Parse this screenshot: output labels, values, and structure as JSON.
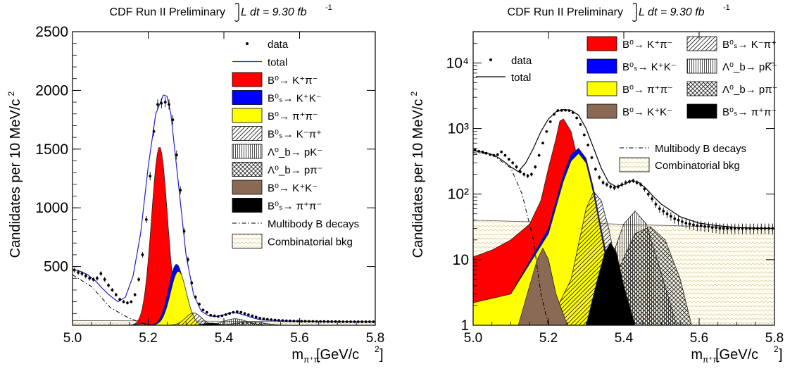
{
  "chart_data": [
    {
      "type": "area",
      "title": "CDF Run II Preliminary",
      "lumi_text": "L dt = 9.30 fb",
      "lumi_exp": "-1",
      "xlabel": "[GeV/c",
      "xlabel_sub": "π⁺π⁻",
      "ylabel": "Candidates per 10 MeV/c",
      "xlim": [
        5.0,
        5.8
      ],
      "ylim": [
        0,
        2500
      ],
      "log_y": false,
      "x_ticks": [
        "5.0",
        "5.2",
        "5.4",
        "5.6",
        "5.8"
      ],
      "x_tick_values": [
        5.0,
        5.2,
        5.4,
        5.6,
        5.8
      ],
      "y_ticks": [
        "500",
        "1000",
        "1500",
        "2000",
        "2500"
      ],
      "y_tick_values": [
        500,
        1000,
        1500,
        2000,
        2500
      ],
      "legend_position": "top-right",
      "legend": [
        {
          "key": "data",
          "label": "data",
          "symbol": "marker"
        },
        {
          "key": "total",
          "label": "total",
          "symbol": "line",
          "color": "#1f1fd0"
        },
        {
          "key": "b0kpi",
          "label": "B⁰→ K⁺π⁻",
          "symbol": "fill",
          "color": "#ff0000"
        },
        {
          "key": "bskk",
          "label": "B⁰ₛ→ K⁺K⁻",
          "symbol": "fill",
          "color": "#0000ff"
        },
        {
          "key": "b0pipi",
          "label": "B⁰→ π⁺π⁻",
          "symbol": "fill",
          "color": "#ffff00"
        },
        {
          "key": "bskpi",
          "label": "B⁰ₛ→ K⁻π⁺",
          "symbol": "diag"
        },
        {
          "key": "lbpk",
          "label": "Λ⁰_b→ pK⁻",
          "symbol": "vert"
        },
        {
          "key": "lbppi",
          "label": "Λ⁰_b→ pπ⁻",
          "symbol": "cross"
        },
        {
          "key": "b0kk",
          "label": "B⁰→ K⁺K⁻",
          "symbol": "fill",
          "color": "#8b6a55"
        },
        {
          "key": "bspipi",
          "label": "B⁰ₛ→ π⁺π⁻",
          "symbol": "fill",
          "color": "#000000"
        },
        {
          "key": "multibody",
          "label": "Multibody B decays",
          "symbol": "dashdot"
        },
        {
          "key": "comb",
          "label": "Combinatorial bkg",
          "symbol": "wave"
        }
      ],
      "series": [
        {
          "name": "B⁰→ K⁺π⁻",
          "type": "gauss",
          "mean": 5.23,
          "sigma": 0.021,
          "peak": 1520
        },
        {
          "name": "B⁰ₛ→ K⁺K⁻",
          "type": "gauss",
          "mean": 5.275,
          "sigma": 0.021,
          "peak": 520
        },
        {
          "name": "B⁰→ π⁺π⁻",
          "type": "gauss",
          "mean": 5.28,
          "sigma": 0.021,
          "peak": 460
        },
        {
          "name": "B⁰ₛ→ K⁻π⁺",
          "type": "gauss",
          "mean": 5.32,
          "sigma": 0.021,
          "peak": 105
        },
        {
          "name": "Λ⁰_b→ pK⁻",
          "type": "gauss",
          "mean": 5.43,
          "sigma": 0.03,
          "peak": 55
        },
        {
          "name": "Λ⁰_b→ pπ⁻",
          "type": "gauss",
          "mean": 5.47,
          "sigma": 0.035,
          "peak": 30
        },
        {
          "name": "B⁰→ K⁺K⁻",
          "type": "gauss",
          "mean": 5.185,
          "sigma": 0.014,
          "peak": 15
        },
        {
          "name": "B⁰ₛ→ π⁺π⁻",
          "type": "gauss",
          "mean": 5.365,
          "sigma": 0.02,
          "peak": 18
        },
        {
          "name": "Multibody B decays",
          "type": "multibody",
          "x": [
            5.0,
            5.05,
            5.1,
            5.15,
            5.2
          ],
          "values": [
            430,
            330,
            150,
            60,
            0
          ]
        },
        {
          "name": "Combinatorial bkg",
          "type": "flat",
          "values": [
            40,
            28
          ]
        }
      ],
      "total": {
        "x": [
          5.0,
          5.02,
          5.04,
          5.06,
          5.08,
          5.1,
          5.12,
          5.14,
          5.16,
          5.18,
          5.2,
          5.22,
          5.24,
          5.25,
          5.26,
          5.28,
          5.3,
          5.32,
          5.34,
          5.36,
          5.38,
          5.4,
          5.42,
          5.44,
          5.46,
          5.48,
          5.5,
          5.55,
          5.6,
          5.65,
          5.7,
          5.75,
          5.8
        ],
        "values": [
          480,
          460,
          430,
          380,
          310,
          250,
          200,
          240,
          420,
          780,
          1350,
          1800,
          1960,
          1950,
          1800,
          1200,
          600,
          260,
          120,
          80,
          75,
          90,
          110,
          100,
          80,
          60,
          45,
          38,
          35,
          33,
          32,
          31,
          30
        ]
      },
      "data_points": {
        "x": [
          5.005,
          5.015,
          5.025,
          5.035,
          5.045,
          5.055,
          5.065,
          5.075,
          5.085,
          5.095,
          5.105,
          5.115,
          5.125,
          5.135,
          5.145,
          5.155,
          5.165,
          5.175,
          5.185,
          5.195,
          5.205,
          5.215,
          5.225,
          5.235,
          5.245,
          5.255,
          5.265,
          5.275,
          5.285,
          5.295,
          5.305,
          5.315,
          5.325,
          5.335,
          5.345,
          5.355,
          5.365,
          5.375,
          5.385,
          5.395,
          5.405,
          5.415,
          5.425,
          5.435,
          5.445,
          5.455,
          5.465,
          5.475,
          5.485,
          5.495,
          5.505,
          5.515,
          5.525,
          5.535,
          5.545,
          5.555,
          5.565,
          5.575,
          5.585,
          5.595,
          5.605,
          5.615,
          5.625,
          5.635,
          5.645,
          5.655,
          5.665,
          5.675,
          5.685,
          5.695,
          5.705,
          5.715,
          5.725,
          5.735,
          5.745,
          5.755,
          5.765,
          5.775,
          5.785,
          5.795
        ],
        "values": [
          470,
          450,
          440,
          420,
          400,
          390,
          400,
          440,
          390,
          340,
          300,
          260,
          220,
          200,
          190,
          200,
          260,
          390,
          600,
          900,
          1270,
          1650,
          1880,
          1890,
          1900,
          1880,
          1750,
          1450,
          1150,
          800,
          560,
          360,
          240,
          180,
          130,
          110,
          85,
          80,
          75,
          80,
          90,
          100,
          110,
          115,
          110,
          100,
          90,
          80,
          70,
          60,
          55,
          50,
          48,
          45,
          42,
          40,
          38,
          37,
          36,
          35,
          34,
          34,
          33,
          33,
          32,
          32,
          32,
          31,
          31,
          31,
          31,
          30,
          30,
          30,
          30,
          30,
          30,
          30,
          30,
          30
        ]
      }
    },
    {
      "type": "area",
      "title": "CDF Run II Preliminary",
      "lumi_text": "L dt = 9.30 fb",
      "lumi_exp": "-1",
      "xlabel": "[GeV/c",
      "xlabel_sub": "π⁺π⁻",
      "ylabel": "Candidates per 10 MeV/c",
      "xlim": [
        5.0,
        5.8
      ],
      "ylim": [
        1,
        30000
      ],
      "log_y": true,
      "x_ticks": [
        "5.0",
        "5.2",
        "5.4",
        "5.6",
        "5.8"
      ],
      "x_tick_values": [
        5.0,
        5.2,
        5.4,
        5.6,
        5.8
      ],
      "y_ticks": [
        "1",
        "10",
        "10²",
        "10³",
        "10⁴"
      ],
      "y_tick_values": [
        1,
        10,
        100,
        1000,
        10000
      ],
      "legend_position": "top-right",
      "legend": [
        {
          "key": "data",
          "label": "data",
          "symbol": "marker"
        },
        {
          "key": "total",
          "label": "total",
          "symbol": "line",
          "color": "#000000"
        },
        {
          "key": "b0kpi",
          "label": "B⁰→ K⁺π⁻",
          "symbol": "fill",
          "color": "#ff0000"
        },
        {
          "key": "bskk",
          "label": "B⁰ₛ→ K⁺K⁻",
          "symbol": "fill",
          "color": "#0000ff"
        },
        {
          "key": "b0pipi",
          "label": "B⁰→ π⁺π⁻",
          "symbol": "fill",
          "color": "#ffff00"
        },
        {
          "key": "b0kk",
          "label": "B⁰→ K⁺K⁻",
          "symbol": "fill",
          "color": "#8b6a55"
        },
        {
          "key": "bskpi",
          "label": "B⁰ₛ→ K⁻π⁺",
          "symbol": "diag"
        },
        {
          "key": "lbpk",
          "label": "Λ⁰_b→ pK⁻",
          "symbol": "vert"
        },
        {
          "key": "lbppi",
          "label": "Λ⁰_b→ pπ⁻",
          "symbol": "cross"
        },
        {
          "key": "bspipi",
          "label": "B⁰ₛ→ π⁺π⁻",
          "symbol": "fill",
          "color": "#000000"
        },
        {
          "key": "multibody",
          "label": "Multibody B decays",
          "symbol": "dashdot"
        },
        {
          "key": "comb",
          "label": "Combinatorial bkg",
          "symbol": "wave"
        }
      ],
      "series": [
        {
          "name": "B⁰→ K⁺π⁻",
          "type": "log_curve",
          "x": [
            5.0,
            5.05,
            5.1,
            5.15,
            5.18,
            5.2,
            5.22,
            5.23,
            5.24,
            5.26,
            5.28,
            5.3,
            5.32,
            5.34,
            5.36,
            5.38
          ],
          "values": [
            11,
            14,
            20,
            35,
            80,
            250,
            700,
            1300,
            1400,
            900,
            300,
            80,
            15,
            4,
            1.5,
            1
          ]
        },
        {
          "name": "B⁰ₛ→ K⁺K⁻",
          "type": "log_curve",
          "x": [
            5.0,
            5.1,
            5.2,
            5.24,
            5.26,
            5.28,
            5.3,
            5.32,
            5.34,
            5.36,
            5.38,
            5.4
          ],
          "values": [
            2,
            3,
            30,
            200,
            400,
            500,
            350,
            120,
            30,
            8,
            2,
            1
          ]
        },
        {
          "name": "B⁰→ π⁺π⁻",
          "type": "log_curve",
          "x": [
            5.0,
            5.1,
            5.2,
            5.24,
            5.26,
            5.28,
            5.3,
            5.32,
            5.34,
            5.36,
            5.38,
            5.4
          ],
          "values": [
            2.2,
            3,
            25,
            160,
            320,
            420,
            300,
            100,
            25,
            6,
            1.8,
            1
          ]
        },
        {
          "name": "B⁰ₛ→ K⁻π⁺",
          "type": "log_curve",
          "x": [
            5.2,
            5.26,
            5.3,
            5.32,
            5.34,
            5.36,
            5.38,
            5.4,
            5.42
          ],
          "values": [
            1,
            5,
            60,
            110,
            80,
            30,
            8,
            2,
            1
          ]
        },
        {
          "name": "Λ⁰_b→ pK⁻",
          "type": "log_curve",
          "x": [
            5.3,
            5.36,
            5.4,
            5.43,
            5.46,
            5.5,
            5.54
          ],
          "values": [
            1,
            8,
            35,
            55,
            35,
            6,
            1
          ]
        },
        {
          "name": "Λ⁰_b→ pπ⁻",
          "type": "log_curve",
          "x": [
            5.32,
            5.38,
            5.43,
            5.47,
            5.51,
            5.55,
            5.58
          ],
          "values": [
            1,
            6,
            25,
            32,
            20,
            5,
            1
          ]
        },
        {
          "name": "B⁰→ K⁺K⁻",
          "type": "log_curve",
          "x": [
            5.12,
            5.15,
            5.17,
            5.185,
            5.2,
            5.22,
            5.25
          ],
          "values": [
            1,
            4,
            10,
            15,
            10,
            3,
            1
          ]
        },
        {
          "name": "B⁰ₛ→ π⁺π⁻",
          "type": "log_curve",
          "x": [
            5.3,
            5.33,
            5.35,
            5.365,
            5.38,
            5.4,
            5.43
          ],
          "values": [
            1,
            5,
            13,
            18,
            13,
            4,
            1
          ]
        },
        {
          "name": "Multibody B decays",
          "type": "log_line",
          "x": [
            5.0,
            5.05,
            5.1,
            5.13,
            5.16,
            5.18,
            5.2
          ],
          "values": [
            430,
            400,
            250,
            100,
            20,
            3,
            1
          ]
        },
        {
          "name": "Combinatorial bkg",
          "type": "log_flat",
          "values": [
            40,
            30
          ]
        }
      ],
      "total": {
        "x": [
          5.0,
          5.02,
          5.04,
          5.06,
          5.08,
          5.1,
          5.12,
          5.14,
          5.16,
          5.18,
          5.2,
          5.22,
          5.24,
          5.26,
          5.28,
          5.3,
          5.32,
          5.34,
          5.36,
          5.38,
          5.4,
          5.42,
          5.44,
          5.46,
          5.48,
          5.5,
          5.55,
          5.6,
          5.65,
          5.7,
          5.75,
          5.8
        ],
        "values": [
          460,
          440,
          420,
          380,
          320,
          260,
          220,
          300,
          500,
          900,
          1400,
          1800,
          1950,
          1900,
          1600,
          1000,
          500,
          250,
          150,
          130,
          140,
          160,
          150,
          120,
          90,
          70,
          45,
          36,
          33,
          31,
          30,
          30
        ]
      },
      "data_points": {
        "x": [
          5.005,
          5.015,
          5.025,
          5.035,
          5.045,
          5.055,
          5.065,
          5.075,
          5.085,
          5.095,
          5.105,
          5.115,
          5.125,
          5.135,
          5.145,
          5.155,
          5.165,
          5.175,
          5.185,
          5.195,
          5.205,
          5.215,
          5.225,
          5.235,
          5.245,
          5.255,
          5.265,
          5.275,
          5.285,
          5.295,
          5.305,
          5.315,
          5.325,
          5.335,
          5.345,
          5.355,
          5.365,
          5.375,
          5.385,
          5.395,
          5.405,
          5.415,
          5.425,
          5.435,
          5.445,
          5.455,
          5.465,
          5.475,
          5.485,
          5.495,
          5.505,
          5.515,
          5.525,
          5.535,
          5.545,
          5.555,
          5.565,
          5.575,
          5.585,
          5.595,
          5.605,
          5.615,
          5.625,
          5.635,
          5.645,
          5.655,
          5.665,
          5.675,
          5.685,
          5.695,
          5.705,
          5.715,
          5.725,
          5.735,
          5.745,
          5.755,
          5.765,
          5.775,
          5.785,
          5.795
        ],
        "values": [
          470,
          450,
          440,
          420,
          400,
          390,
          400,
          440,
          390,
          340,
          300,
          260,
          220,
          200,
          190,
          200,
          260,
          390,
          600,
          900,
          1270,
          1650,
          1880,
          1890,
          1900,
          1880,
          1750,
          1450,
          1150,
          800,
          560,
          360,
          240,
          180,
          150,
          140,
          130,
          125,
          130,
          140,
          150,
          155,
          160,
          150,
          140,
          120,
          100,
          85,
          70,
          60,
          55,
          50,
          46,
          42,
          40,
          38,
          36,
          35,
          34,
          33,
          33,
          32,
          32,
          31,
          31,
          30,
          30,
          30,
          30,
          30,
          30,
          30,
          30,
          30,
          30,
          30,
          30,
          30,
          30,
          30
        ]
      }
    }
  ]
}
